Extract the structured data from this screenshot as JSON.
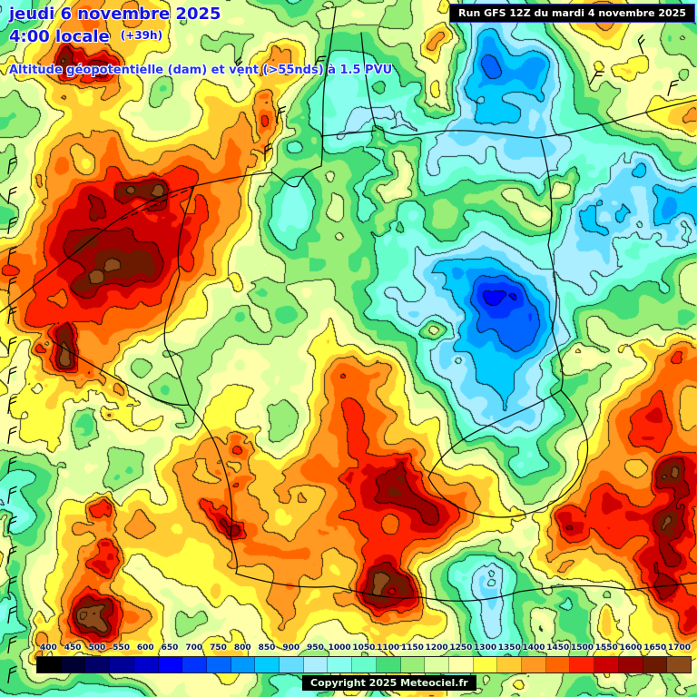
{
  "header": {
    "date_line": "jeudi 6 novembre 2025",
    "time_line": "4:00 locale",
    "time_offset": "(+39h)",
    "subtitle": "Altitude géopotentielle (dam) et vent (>55nds) à 1.5 PVU",
    "run_info": "Run GFS 12Z du mardi 4 novembre 2025"
  },
  "legend": {
    "values": [
      400,
      450,
      500,
      550,
      600,
      650,
      700,
      750,
      800,
      850,
      900,
      950,
      1000,
      1050,
      1100,
      1150,
      1200,
      1250,
      1300,
      1350,
      1400,
      1450,
      1500,
      1550,
      1600,
      1650,
      1700
    ],
    "colors": [
      "#000000",
      "#000033",
      "#000066",
      "#000099",
      "#0000cc",
      "#0000ff",
      "#0033ff",
      "#0066ff",
      "#0099ff",
      "#00ccff",
      "#66ddff",
      "#aaeeff",
      "#88ffee",
      "#66ffcc",
      "#44dd77",
      "#99ee77",
      "#ddffa0",
      "#ffffaa",
      "#ffff44",
      "#ffcc33",
      "#ff9922",
      "#ff6600",
      "#ff2200",
      "#cc0000",
      "#990000",
      "#6b1a00",
      "#8a4a1a"
    ]
  },
  "footer": {
    "copyright": "Copyright 2025 Meteociel.fr"
  }
}
